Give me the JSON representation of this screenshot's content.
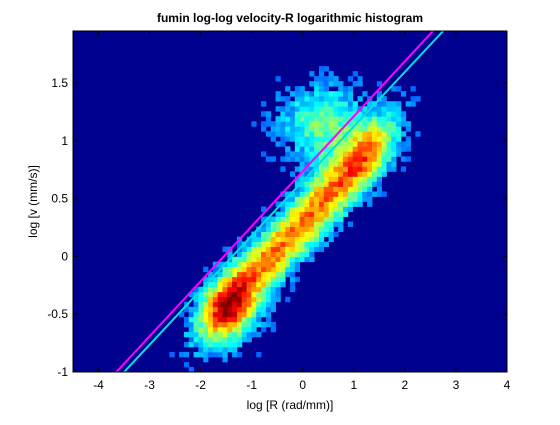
{
  "chart_data": {
    "type": "heatmap",
    "title": "fumin log-log velocity-R logarithmic histogram",
    "xlabel": "log [R (rad/mm)]",
    "ylabel": "log [v (mm/s)]",
    "xlim": [
      -4.5,
      4
    ],
    "ylim": [
      -1,
      1.95
    ],
    "xticks": [
      -4,
      -3,
      -2,
      -1,
      0,
      1,
      2,
      3,
      4
    ],
    "yticks": [
      -1,
      -0.5,
      0,
      0.5,
      1,
      1.5
    ],
    "xtick_labels": [
      "-4",
      "-3",
      "-2",
      "-1",
      "0",
      "1",
      "2",
      "3",
      "4"
    ],
    "ytick_labels": [
      "-1",
      "-0.5",
      "0",
      "0.5",
      "1",
      "1.5"
    ],
    "grid": false,
    "colormap": "jet",
    "density_ridge": {
      "description_points": [
        {
          "x": -1.4,
          "y": -0.5
        },
        {
          "x": 0.4,
          "y": 1.15
        }
      ]
    },
    "fit_lines": [
      {
        "color": "#ff00ff",
        "x": [
          -3.65,
          2.55
        ],
        "y": [
          -1.0,
          1.95
        ]
      },
      {
        "color": "#00e0e0",
        "x": [
          -3.5,
          2.75
        ],
        "y": [
          -1.0,
          1.95
        ]
      }
    ]
  }
}
